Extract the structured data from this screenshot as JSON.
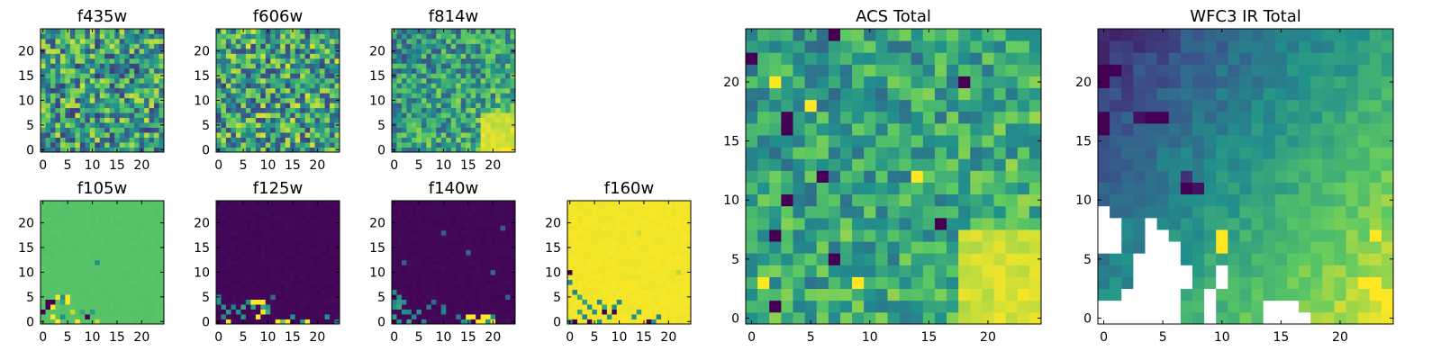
{
  "colormap": [
    "#440154",
    "#3b528b",
    "#21918c",
    "#5ec962",
    "#fde725"
  ],
  "missing_color": "#ffffff",
  "frame_color": "#000000",
  "chart_data": [
    {
      "id": "f435w",
      "type": "heatmap",
      "title": "f435w",
      "xlim": [
        0,
        25
      ],
      "ylim": [
        0,
        25
      ],
      "xticks": [
        0,
        5,
        10,
        15,
        20
      ],
      "yticks": [
        0,
        5,
        10,
        15,
        20
      ],
      "grid_size": 25,
      "pattern": "noise",
      "value_range": [
        0.18,
        0.92
      ],
      "seed": 11,
      "notes": "fine-grained random noise across the whole frame"
    },
    {
      "id": "f606w",
      "type": "heatmap",
      "title": "f606w",
      "xlim": [
        0,
        25
      ],
      "ylim": [
        0,
        25
      ],
      "xticks": [
        0,
        5,
        10,
        15,
        20
      ],
      "yticks": [
        0,
        5,
        10,
        15,
        20
      ],
      "grid_size": 25,
      "pattern": "noise",
      "value_range": [
        0.2,
        0.95
      ],
      "seed": 23
    },
    {
      "id": "f814w",
      "type": "heatmap",
      "title": "f814w",
      "xlim": [
        0,
        25
      ],
      "ylim": [
        0,
        25
      ],
      "xticks": [
        0,
        5,
        10,
        15,
        20
      ],
      "yticks": [
        0,
        5,
        10,
        15,
        20
      ],
      "grid_size": 25,
      "pattern": "noise_bright_corner",
      "value_range": [
        0.25,
        0.9
      ],
      "seed": 37,
      "bright_corner": "bottom-right"
    },
    {
      "id": "f105w",
      "type": "heatmap",
      "title": "f105w",
      "xlim": [
        0,
        25
      ],
      "ylim": [
        0,
        25
      ],
      "xticks": [
        0,
        5,
        10,
        15,
        20
      ],
      "yticks": [
        0,
        5,
        10,
        15,
        20
      ],
      "grid_size": 25,
      "pattern": "flat",
      "base_value": 0.72,
      "seed": 5,
      "cells": [
        {
          "x": 1,
          "y": 4,
          "v": 0.0
        },
        {
          "x": 1,
          "y": 3,
          "v": 0.0
        },
        {
          "x": 2,
          "y": 4,
          "v": 0.0
        },
        {
          "x": 2,
          "y": 3,
          "v": 1.0
        },
        {
          "x": 3,
          "y": 5,
          "v": 1.0
        },
        {
          "x": 4,
          "y": 5,
          "v": 0.5
        },
        {
          "x": 4,
          "y": 4,
          "v": 0.6
        },
        {
          "x": 5,
          "y": 5,
          "v": 1.0
        },
        {
          "x": 5,
          "y": 4,
          "v": 1.0
        },
        {
          "x": 0,
          "y": 2,
          "v": 0.0
        },
        {
          "x": 2,
          "y": 1,
          "v": 1.0
        },
        {
          "x": 3,
          "y": 0,
          "v": 1.0
        },
        {
          "x": 4,
          "y": 1,
          "v": 0.5
        },
        {
          "x": 6,
          "y": 2,
          "v": 0.9
        },
        {
          "x": 7,
          "y": 0,
          "v": 1.0
        },
        {
          "x": 9,
          "y": 1,
          "v": 0.0
        },
        {
          "x": 10,
          "y": 2,
          "v": 0.55
        },
        {
          "x": 11,
          "y": 0,
          "v": 0.9
        },
        {
          "x": 11,
          "y": 12,
          "v": 0.5
        },
        {
          "x": 8,
          "y": 2,
          "v": 0.6
        }
      ]
    },
    {
      "id": "f125w",
      "type": "heatmap",
      "title": "f125w",
      "xlim": [
        0,
        25
      ],
      "ylim": [
        0,
        25
      ],
      "xticks": [
        0,
        5,
        10,
        15,
        20
      ],
      "yticks": [
        0,
        5,
        10,
        15,
        20
      ],
      "grid_size": 25,
      "pattern": "flat",
      "base_value": 0.02,
      "seed": 7,
      "cells": [
        {
          "x": 0,
          "y": 5,
          "v": 0.5
        },
        {
          "x": 0,
          "y": 4,
          "v": 0.5
        },
        {
          "x": 1,
          "y": 3,
          "v": 0.5
        },
        {
          "x": 2,
          "y": 2,
          "v": 0.55
        },
        {
          "x": 1,
          "y": 1,
          "v": 0.45
        },
        {
          "x": 2,
          "y": 0,
          "v": 1.0
        },
        {
          "x": 3,
          "y": 3,
          "v": 0.45
        },
        {
          "x": 4,
          "y": 2,
          "v": 0.5
        },
        {
          "x": 5,
          "y": 3,
          "v": 0.6
        },
        {
          "x": 5,
          "y": 1,
          "v": 0.5
        },
        {
          "x": 6,
          "y": 4,
          "v": 0.5
        },
        {
          "x": 7,
          "y": 3,
          "v": 0.55
        },
        {
          "x": 7,
          "y": 4,
          "v": 1.0
        },
        {
          "x": 8,
          "y": 4,
          "v": 1.0
        },
        {
          "x": 9,
          "y": 4,
          "v": 1.0
        },
        {
          "x": 9,
          "y": 3,
          "v": 0.6
        },
        {
          "x": 9,
          "y": 2,
          "v": 1.0
        },
        {
          "x": 8,
          "y": 1,
          "v": 1.0
        },
        {
          "x": 10,
          "y": 3,
          "v": 0.5
        },
        {
          "x": 10,
          "y": 2,
          "v": 0.6
        },
        {
          "x": 12,
          "y": 0,
          "v": 1.0
        },
        {
          "x": 13,
          "y": 0,
          "v": 0.75
        },
        {
          "x": 14,
          "y": 0,
          "v": 1.0
        },
        {
          "x": 15,
          "y": 1,
          "v": 0.5
        },
        {
          "x": 17,
          "y": 0,
          "v": 0.5
        },
        {
          "x": 18,
          "y": 0,
          "v": 1.0
        },
        {
          "x": 22,
          "y": 1,
          "v": 0.5
        },
        {
          "x": 24,
          "y": 0,
          "v": 0.45
        },
        {
          "x": 11,
          "y": 5,
          "v": 0.35
        }
      ]
    },
    {
      "id": "f140w",
      "type": "heatmap",
      "title": "f140w",
      "xlim": [
        0,
        25
      ],
      "ylim": [
        0,
        25
      ],
      "xticks": [
        0,
        5,
        10,
        15,
        20
      ],
      "yticks": [
        0,
        5,
        10,
        15,
        20
      ],
      "grid_size": 25,
      "pattern": "flat",
      "base_value": 0.02,
      "seed": 9,
      "cells": [
        {
          "x": 0,
          "y": 6,
          "v": 0.5
        },
        {
          "x": 1,
          "y": 5,
          "v": 0.5
        },
        {
          "x": 0,
          "y": 4,
          "v": 0.45
        },
        {
          "x": 1,
          "y": 4,
          "v": 0.55
        },
        {
          "x": 2,
          "y": 4,
          "v": 0.5
        },
        {
          "x": 0,
          "y": 3,
          "v": 0.5
        },
        {
          "x": 1,
          "y": 3,
          "v": 0.6
        },
        {
          "x": 2,
          "y": 2,
          "v": 0.5
        },
        {
          "x": 3,
          "y": 2,
          "v": 0.45
        },
        {
          "x": 0,
          "y": 1,
          "v": 0.55
        },
        {
          "x": 1,
          "y": 0,
          "v": 0.5
        },
        {
          "x": 3,
          "y": 0,
          "v": 0.6
        },
        {
          "x": 4,
          "y": 1,
          "v": 0.45
        },
        {
          "x": 5,
          "y": 2,
          "v": 0.5
        },
        {
          "x": 6,
          "y": 0,
          "v": 0.45
        },
        {
          "x": 7,
          "y": 3,
          "v": 0.4
        },
        {
          "x": 10,
          "y": 2,
          "v": 0.45
        },
        {
          "x": 10,
          "y": 3,
          "v": 0.4
        },
        {
          "x": 14,
          "y": 0,
          "v": 0.5
        },
        {
          "x": 15,
          "y": 0,
          "v": 0.55
        },
        {
          "x": 15,
          "y": 1,
          "v": 1.0
        },
        {
          "x": 16,
          "y": 1,
          "v": 1.0
        },
        {
          "x": 17,
          "y": 0,
          "v": 1.0
        },
        {
          "x": 18,
          "y": 0,
          "v": 1.0
        },
        {
          "x": 18,
          "y": 1,
          "v": 1.0
        },
        {
          "x": 19,
          "y": 0,
          "v": 0.5
        },
        {
          "x": 19,
          "y": 1,
          "v": 1.0
        },
        {
          "x": 20,
          "y": 0,
          "v": 1.0
        },
        {
          "x": 20,
          "y": 1,
          "v": 0.5
        },
        {
          "x": 13,
          "y": 1,
          "v": 0.4
        },
        {
          "x": 8,
          "y": 4,
          "v": 0.35
        },
        {
          "x": 20,
          "y": 10,
          "v": 0.35
        },
        {
          "x": 15,
          "y": 14,
          "v": 0.35
        },
        {
          "x": 10,
          "y": 18,
          "v": 0.3
        },
        {
          "x": 2,
          "y": 12,
          "v": 0.3
        },
        {
          "x": 22,
          "y": 19,
          "v": 0.3
        },
        {
          "x": 23,
          "y": 5,
          "v": 0.3
        }
      ]
    },
    {
      "id": "f160w",
      "type": "heatmap",
      "title": "f160w",
      "xlim": [
        0,
        25
      ],
      "ylim": [
        0,
        25
      ],
      "xticks": [
        0,
        5,
        10,
        15,
        20
      ],
      "yticks": [
        0,
        5,
        10,
        15,
        20
      ],
      "grid_size": 25,
      "pattern": "flat",
      "base_value": 0.985,
      "seed": 13,
      "cells": [
        {
          "x": 0,
          "y": 10,
          "v": 0.0
        },
        {
          "x": 0,
          "y": 8,
          "v": 0.5
        },
        {
          "x": 1,
          "y": 6,
          "v": 0.45
        },
        {
          "x": 2,
          "y": 5,
          "v": 0.6
        },
        {
          "x": 3,
          "y": 4,
          "v": 0.55
        },
        {
          "x": 4,
          "y": 3,
          "v": 0.5
        },
        {
          "x": 2,
          "y": 2,
          "v": 0.6
        },
        {
          "x": 3,
          "y": 1,
          "v": 0.45
        },
        {
          "x": 4,
          "y": 0,
          "v": 0.0
        },
        {
          "x": 5,
          "y": 2,
          "v": 0.5
        },
        {
          "x": 6,
          "y": 4,
          "v": 0.45
        },
        {
          "x": 7,
          "y": 3,
          "v": 0.6
        },
        {
          "x": 7,
          "y": 2,
          "v": 0.0
        },
        {
          "x": 8,
          "y": 1,
          "v": 0.5
        },
        {
          "x": 9,
          "y": 2,
          "v": 0.0
        },
        {
          "x": 9,
          "y": 3,
          "v": 0.5
        },
        {
          "x": 10,
          "y": 4,
          "v": 0.45
        },
        {
          "x": 1,
          "y": 0,
          "v": 0.0
        },
        {
          "x": 0,
          "y": 0,
          "v": 0.55
        },
        {
          "x": 6,
          "y": 0,
          "v": 0.5
        },
        {
          "x": 13,
          "y": 1,
          "v": 0.5
        },
        {
          "x": 14,
          "y": 2,
          "v": 0.55
        },
        {
          "x": 16,
          "y": 0,
          "v": 0.0
        },
        {
          "x": 17,
          "y": 0,
          "v": 0.5
        },
        {
          "x": 18,
          "y": 1,
          "v": 0.45
        },
        {
          "x": 22,
          "y": 10,
          "v": 0.9
        },
        {
          "x": 14,
          "y": 18,
          "v": 0.92
        }
      ]
    },
    {
      "id": "acs-total",
      "type": "heatmap",
      "title": "ACS Total",
      "xlim": [
        0,
        25
      ],
      "ylim": [
        0,
        25
      ],
      "xticks": [
        0,
        5,
        10,
        15,
        20
      ],
      "yticks": [
        0,
        5,
        10,
        15,
        20
      ],
      "grid_size": 25,
      "pattern": "noise_bright_corner",
      "value_range": [
        0.35,
        0.88
      ],
      "seed": 101,
      "bright_corner": "bottom-right",
      "cells": [
        {
          "x": 0,
          "y": 22,
          "v": 0.0
        },
        {
          "x": 7,
          "y": 24,
          "v": 0.0
        },
        {
          "x": 2,
          "y": 20,
          "v": 1.0
        },
        {
          "x": 3,
          "y": 17,
          "v": 0.0
        },
        {
          "x": 3,
          "y": 16,
          "v": 0.0
        },
        {
          "x": 2,
          "y": 7,
          "v": 0.0
        },
        {
          "x": 3,
          "y": 10,
          "v": 0.0
        },
        {
          "x": 18,
          "y": 20,
          "v": 0.0
        },
        {
          "x": 16,
          "y": 8,
          "v": 0.0
        },
        {
          "x": 2,
          "y": 1,
          "v": 0.0
        },
        {
          "x": 6,
          "y": 12,
          "v": 0.0
        },
        {
          "x": 7,
          "y": 5,
          "v": 0.0
        },
        {
          "x": 5,
          "y": 18,
          "v": 1.0
        },
        {
          "x": 9,
          "y": 3,
          "v": 1.0
        },
        {
          "x": 1,
          "y": 3,
          "v": 1.0
        },
        {
          "x": 14,
          "y": 12,
          "v": 1.0
        }
      ]
    },
    {
      "id": "wfc3-ir-total",
      "type": "heatmap",
      "title": "WFC3 IR Total",
      "xlim": [
        0,
        25
      ],
      "ylim": [
        0,
        25
      ],
      "xticks": [
        0,
        5,
        10,
        15,
        20
      ],
      "yticks": [
        0,
        5,
        10,
        15,
        20
      ],
      "grid_size": 25,
      "pattern": "gradient",
      "value_range": [
        0.12,
        0.95
      ],
      "seed": 202,
      "gradient": "dark top-left to bright bottom-right",
      "cells": [
        {
          "x": 0,
          "y": 21,
          "v": 0.0
        },
        {
          "x": 0,
          "y": 20,
          "v": 0.0
        },
        {
          "x": 1,
          "y": 21,
          "v": 0.0
        },
        {
          "x": 0,
          "y": 17,
          "v": 0.0
        },
        {
          "x": 0,
          "y": 16,
          "v": 0.0
        },
        {
          "x": 4,
          "y": 17,
          "v": 0.0
        },
        {
          "x": 5,
          "y": 17,
          "v": 0.0
        },
        {
          "x": 3,
          "y": 17,
          "v": 0.05
        },
        {
          "x": 7,
          "y": 11,
          "v": 0.0
        },
        {
          "x": 8,
          "y": 11,
          "v": 0.05
        },
        {
          "x": 7,
          "y": 12,
          "v": 0.15
        },
        {
          "x": 10,
          "y": 7,
          "v": 1.0
        },
        {
          "x": 10,
          "y": 6,
          "v": 1.0
        },
        {
          "x": 23,
          "y": 7,
          "v": 1.0
        },
        {
          "x": 22,
          "y": 3,
          "v": 1.0
        },
        {
          "x": 23,
          "y": 3,
          "v": 1.0
        },
        {
          "x": 24,
          "y": 2,
          "v": 1.0
        },
        {
          "x": 23,
          "y": 2,
          "v": 1.0
        },
        {
          "x": 24,
          "y": 1,
          "v": 1.0
        }
      ],
      "missing": [
        [
          0,
          0
        ],
        [
          1,
          0
        ],
        [
          2,
          0
        ],
        [
          3,
          0
        ],
        [
          4,
          0
        ],
        [
          5,
          0
        ],
        [
          6,
          0
        ],
        [
          9,
          0
        ],
        [
          14,
          0
        ],
        [
          15,
          0
        ],
        [
          16,
          0
        ],
        [
          17,
          0
        ],
        [
          0,
          1
        ],
        [
          1,
          1
        ],
        [
          2,
          1
        ],
        [
          3,
          1
        ],
        [
          4,
          1
        ],
        [
          5,
          1
        ],
        [
          6,
          1
        ],
        [
          9,
          1
        ],
        [
          14,
          1
        ],
        [
          15,
          1
        ],
        [
          16,
          1
        ],
        [
          2,
          2
        ],
        [
          3,
          2
        ],
        [
          4,
          2
        ],
        [
          5,
          2
        ],
        [
          6,
          2
        ],
        [
          9,
          2
        ],
        [
          3,
          3
        ],
        [
          4,
          3
        ],
        [
          5,
          3
        ],
        [
          6,
          3
        ],
        [
          7,
          3
        ],
        [
          10,
          3
        ],
        [
          3,
          4
        ],
        [
          4,
          4
        ],
        [
          5,
          4
        ],
        [
          6,
          4
        ],
        [
          7,
          4
        ],
        [
          10,
          4
        ],
        [
          3,
          5
        ],
        [
          4,
          5
        ],
        [
          5,
          5
        ],
        [
          6,
          5
        ],
        [
          0,
          6
        ],
        [
          1,
          6
        ],
        [
          4,
          6
        ],
        [
          5,
          6
        ],
        [
          6,
          6
        ],
        [
          0,
          7
        ],
        [
          1,
          7
        ],
        [
          4,
          7
        ],
        [
          5,
          7
        ],
        [
          0,
          8
        ],
        [
          1,
          8
        ],
        [
          4,
          8
        ],
        [
          0,
          9
        ]
      ]
    }
  ]
}
